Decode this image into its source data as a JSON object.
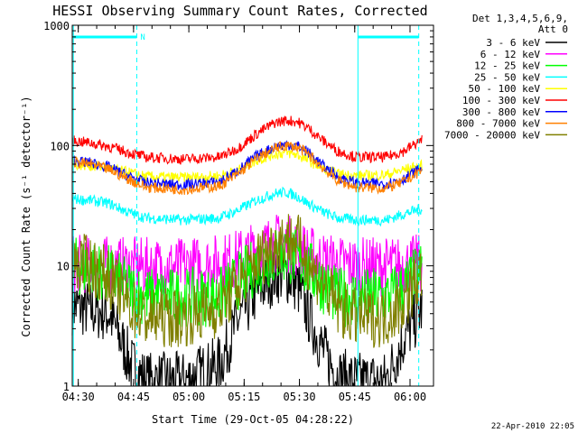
{
  "chart_data": {
    "type": "line",
    "title": "HESSI Observing Summary Count Rates, Corrected",
    "xlabel": "Start Time (29-Oct-05 04:28:22)",
    "ylabel": "Corrected Count Rate (s⁻¹ detector⁻¹)",
    "yscale": "log",
    "ylim": [
      1,
      1000
    ],
    "xlim_minutes": [
      0,
      98
    ],
    "x_unit": "minutes after 04:28:22",
    "x_ticks": [
      {
        "t": 1.63,
        "label": "04:30"
      },
      {
        "t": 16.63,
        "label": "04:45"
      },
      {
        "t": 31.63,
        "label": "05:00"
      },
      {
        "t": 46.63,
        "label": "05:15"
      },
      {
        "t": 61.63,
        "label": "05:30"
      },
      {
        "t": 76.63,
        "label": "05:45"
      },
      {
        "t": 91.63,
        "label": "06:00"
      }
    ],
    "y_ticks": [
      {
        "v": 1,
        "label": "1"
      },
      {
        "v": 10,
        "label": "10"
      },
      {
        "v": 100,
        "label": "100"
      },
      {
        "v": 1000,
        "label": "1000"
      }
    ],
    "legend_header": [
      "Det 1,3,4,5,6,9,",
      "Att 0"
    ],
    "legend_position": "right",
    "grid": false,
    "timestamp": "22-Apr-2010 22:05",
    "marker_label": "N",
    "markers": {
      "solid_lines": [
        0.3,
        77.5
      ],
      "dashed_lines": [
        17.5,
        94.0
      ],
      "bars": [
        [
          0.3,
          17.5
        ],
        [
          77.5,
          94.0
        ]
      ]
    },
    "series": [
      {
        "name": "3 - 6 keV",
        "color": "#000000",
        "x": [
          0,
          5,
          10,
          13,
          16,
          20,
          30,
          40,
          45,
          50,
          55,
          58,
          61,
          64,
          68,
          72,
          77,
          85,
          90,
          95
        ],
        "y": [
          4.7,
          4.3,
          4.0,
          2.5,
          1.5,
          1.1,
          1.1,
          1.5,
          3.5,
          6,
          8.5,
          8.5,
          7,
          4,
          2,
          1.2,
          1.1,
          1.1,
          2.5,
          4.5
        ]
      },
      {
        "name": "6 - 12 keV",
        "color": "#ff00ff",
        "x": [
          0,
          10,
          20,
          30,
          40,
          45,
          50,
          55,
          58,
          61,
          64,
          68,
          72,
          80,
          90,
          95
        ],
        "y": [
          10.5,
          10,
          9.8,
          9.8,
          10.5,
          11.5,
          13.5,
          15.5,
          15.5,
          14,
          12.5,
          11,
          10.3,
          9.8,
          10,
          10.5
        ]
      },
      {
        "name": "12 - 25 keV",
        "color": "#00ff00",
        "x": [
          0,
          5,
          10,
          15,
          20,
          30,
          40,
          45,
          50,
          55,
          58,
          61,
          64,
          68,
          72,
          77,
          85,
          90,
          95
        ],
        "y": [
          10,
          9.5,
          8.5,
          6.5,
          5.5,
          5.5,
          5.5,
          7.5,
          10,
          12,
          12.5,
          11.5,
          9.5,
          7,
          5.5,
          5.5,
          5.5,
          6.5,
          9.5
        ]
      },
      {
        "name": "25 - 50 keV",
        "color": "#00ffff",
        "x": [
          0,
          5,
          10,
          15,
          20,
          30,
          40,
          45,
          50,
          55,
          58,
          61,
          64,
          68,
          72,
          77,
          85,
          90,
          95
        ],
        "y": [
          36,
          35,
          33,
          28,
          25,
          24,
          25,
          29,
          35,
          40,
          41,
          38,
          33,
          28,
          25,
          24,
          24,
          27,
          30
        ]
      },
      {
        "name": "50 - 100 keV",
        "color": "#ffff00",
        "x": [
          0,
          5,
          10,
          15,
          20,
          30,
          40,
          45,
          50,
          55,
          58,
          61,
          64,
          68,
          72,
          77,
          85,
          90,
          95
        ],
        "y": [
          70,
          68,
          65,
          60,
          55,
          54,
          56,
          62,
          75,
          85,
          87,
          84,
          75,
          65,
          58,
          56,
          57,
          63,
          68
        ]
      },
      {
        "name": "100 - 300 keV",
        "color": "#ff0000",
        "x": [
          0,
          5,
          10,
          15,
          20,
          30,
          40,
          45,
          50,
          55,
          58,
          61,
          64,
          68,
          72,
          77,
          85,
          90,
          95
        ],
        "y": [
          110,
          105,
          98,
          88,
          80,
          77,
          80,
          95,
          125,
          155,
          162,
          158,
          140,
          110,
          90,
          80,
          80,
          90,
          112
        ]
      },
      {
        "name": "300 - 800 keV",
        "color": "#0000ff",
        "x": [
          0,
          5,
          10,
          15,
          20,
          30,
          40,
          45,
          50,
          55,
          58,
          61,
          64,
          68,
          72,
          77,
          85,
          90,
          95
        ],
        "y": [
          75,
          72,
          66,
          56,
          49,
          47,
          50,
          62,
          82,
          98,
          102,
          100,
          88,
          68,
          55,
          49,
          48,
          53,
          66
        ]
      },
      {
        "name": "800 - 7000 keV",
        "color": "#ff8000",
        "x": [
          0,
          5,
          10,
          15,
          20,
          30,
          40,
          45,
          50,
          55,
          58,
          61,
          64,
          68,
          72,
          77,
          85,
          90,
          95
        ],
        "y": [
          73,
          70,
          63,
          53,
          45,
          43,
          46,
          58,
          78,
          95,
          100,
          97,
          85,
          65,
          51,
          45,
          44,
          50,
          63
        ]
      },
      {
        "name": "7000 - 20000 keV",
        "color": "#808000",
        "x": [
          0,
          5,
          10,
          13,
          16,
          20,
          30,
          40,
          45,
          50,
          55,
          58,
          61,
          64,
          68,
          72,
          77,
          85,
          90,
          95
        ],
        "y": [
          11,
          10,
          8,
          6,
          4.5,
          3.7,
          3.7,
          4.5,
          7,
          11,
          15,
          17,
          16,
          11,
          7,
          4.5,
          3.7,
          3.7,
          5,
          9
        ]
      }
    ]
  }
}
